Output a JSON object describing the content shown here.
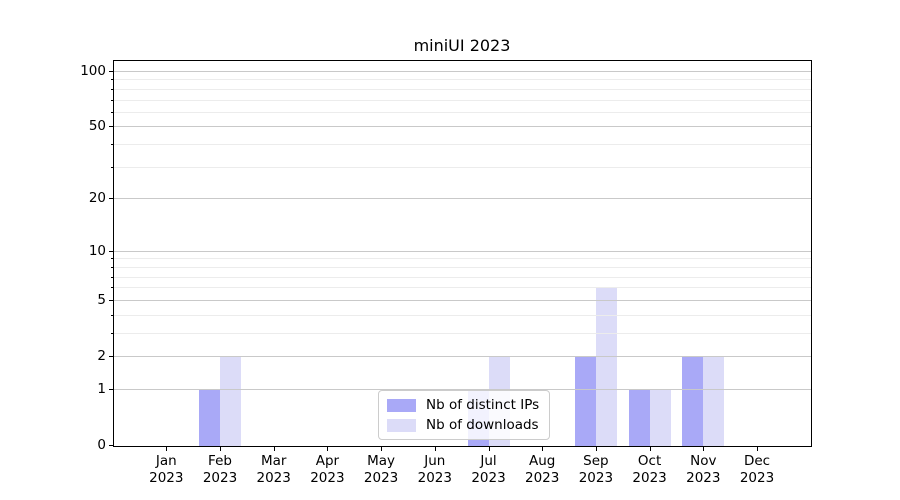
{
  "chart_data": {
    "type": "bar",
    "title": "miniUI 2023",
    "categories": [
      "Jan",
      "Feb",
      "Mar",
      "Apr",
      "May",
      "Jun",
      "Jul",
      "Aug",
      "Sep",
      "Oct",
      "Nov",
      "Dec"
    ],
    "x_year_line": "2023",
    "series": [
      {
        "name": "Nb of distinct IPs",
        "color": "#a9a9f7",
        "values": [
          0,
          1,
          0,
          0,
          0,
          0,
          1,
          0,
          2,
          1,
          2,
          0
        ]
      },
      {
        "name": "Nb of downloads",
        "color": "#dcdcf8",
        "values": [
          0,
          2,
          0,
          0,
          0,
          0,
          2,
          0,
          6,
          1,
          2,
          0
        ]
      }
    ],
    "y_scale": "log1p",
    "y_ticks": [
      0,
      1,
      2,
      5,
      10,
      20,
      50,
      100
    ],
    "y_minor_gridlines": [
      3,
      4,
      6,
      7,
      8,
      9,
      30,
      40,
      60,
      70,
      80,
      90
    ],
    "ylim": [
      0,
      115
    ],
    "xlabel": "",
    "ylabel": "",
    "grid": true,
    "legend_position": "lower center",
    "colors": {
      "axis": "#000000",
      "major_grid": "#c9c9c9",
      "minor_grid": "#ececec",
      "legend_border": "#cccccc"
    }
  }
}
